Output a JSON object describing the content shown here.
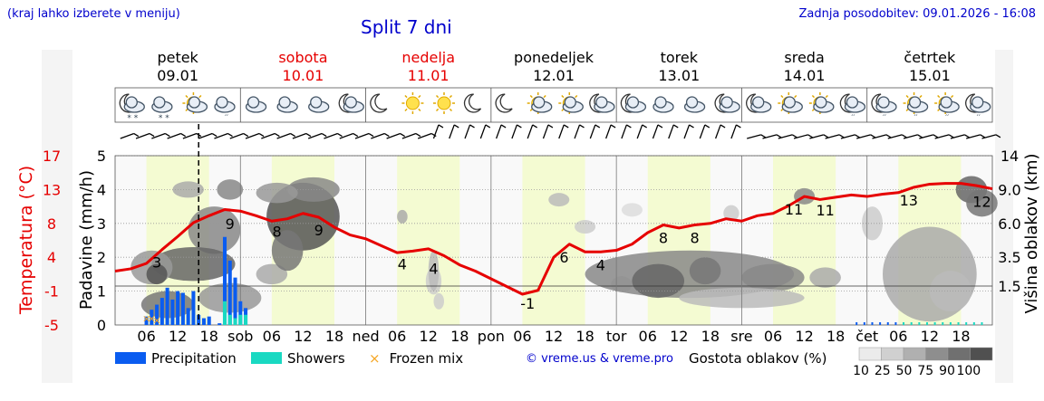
{
  "header": {
    "note": "(kraj lahko izberete v meniju)",
    "title": "Split 7 dni",
    "updated": "Zadnja posodobitev: 09.01.2026 - 16:08"
  },
  "colors": {
    "weekday": "#000000",
    "weekend": "#e60000",
    "temperature": "#e60000",
    "precipitation": "#0a5cf0",
    "showers": "#19d9c2",
    "frozen": "#f5a623",
    "day_band": "#f4fbd2",
    "night_band": "#f9f9f9",
    "link": "#0000cc"
  },
  "days": [
    {
      "name": "petek",
      "date": "09.01",
      "weekend": false
    },
    {
      "name": "sobota",
      "date": "10.01",
      "weekend": true
    },
    {
      "name": "nedelja",
      "date": "11.01",
      "weekend": true
    },
    {
      "name": "ponedeljek",
      "date": "12.01",
      "weekend": false
    },
    {
      "name": "torek",
      "date": "13.01",
      "weekend": false
    },
    {
      "name": "sreda",
      "date": "14.01",
      "weekend": false
    },
    {
      "name": "četrtek",
      "date": "15.01",
      "weekend": false
    }
  ],
  "weather_icons": [
    [
      "moon-cloud-snow-icon",
      "cloud-snow-icon",
      "sun-cloud-icon",
      "cloud-rain-icon"
    ],
    [
      "cloud-icon",
      "cloud-icon",
      "cloud-icon",
      "moon-cloud-icon"
    ],
    [
      "moon-icon",
      "sun-icon",
      "sun-icon",
      "moon-icon"
    ],
    [
      "moon-icon",
      "sun-cloud-icon",
      "sun-cloud-icon",
      "moon-cloud-icon"
    ],
    [
      "moon-cloud-icon",
      "cloud-icon",
      "cloud-icon",
      "moon-cloud-icon"
    ],
    [
      "moon-cloud-icon",
      "sun-cloud-icon",
      "sun-cloud-icon",
      "moon-cloud-rain-icon"
    ],
    [
      "moon-cloud-rain-icon",
      "sun-cloud-rain-icon",
      "sun-cloud-rain-icon",
      "moon-cloud-rain-icon"
    ]
  ],
  "axes": {
    "precip_label": "Padavine (mm/h)",
    "precip_ticks": [
      "0",
      "1",
      "2",
      "3",
      "4",
      "5"
    ],
    "temp_label": "Temperatura (°C)",
    "temp_ticks": [
      "-5",
      "-1",
      "4",
      "8",
      "13",
      "17"
    ],
    "cloud_label": "Višina oblakov (km)",
    "cloud_ticks": [
      "1.5",
      "3.5",
      "6.0",
      "9.0",
      "14"
    ],
    "time_labels": [
      "06",
      "12",
      "18",
      "sob",
      "06",
      "12",
      "18",
      "ned",
      "06",
      "12",
      "18",
      "pon",
      "06",
      "12",
      "18",
      "tor",
      "06",
      "12",
      "18",
      "sre",
      "06",
      "12",
      "18",
      "čet",
      "06",
      "12",
      "18"
    ]
  },
  "legend": {
    "precipitation": "Precipitation",
    "showers": "Showers",
    "frozen": "Frozen mix",
    "credit": "© vreme.us & vreme.pro",
    "cloud_title": "Gostota oblakov (%)",
    "cloud_scale": [
      "10",
      "25",
      "50",
      "75",
      "90",
      "100"
    ]
  },
  "chart_data": {
    "type": "line",
    "title": "Split 7 dni",
    "x_unit": "hours from 09.01 00:00",
    "xlim": [
      0,
      168
    ],
    "current_time_hour": 16,
    "temperature": {
      "ylabel": "Temperatura (°C)",
      "ylim": [
        -5,
        17
      ],
      "x": [
        0,
        3,
        6,
        9,
        12,
        15,
        18,
        21,
        24,
        27,
        30,
        33,
        36,
        39,
        42,
        45,
        48,
        51,
        54,
        57,
        60,
        63,
        66,
        69,
        72,
        75,
        78,
        81,
        84,
        87,
        90,
        93,
        96,
        99,
        102,
        105,
        108,
        111,
        114,
        117,
        120,
        123,
        126,
        129,
        132,
        135,
        138,
        141,
        144,
        147,
        150,
        153,
        156,
        159,
        162,
        165,
        168
      ],
      "values": [
        2,
        2.3,
        3,
        4.8,
        6.5,
        8.3,
        9.2,
        10,
        9.8,
        9.2,
        8.5,
        8.8,
        9.5,
        9,
        7.7,
        6.7,
        6.2,
        5.3,
        4.4,
        4.6,
        4.9,
        4,
        2.8,
        2,
        1,
        0,
        -1,
        -0.5,
        3.8,
        5.5,
        4.5,
        4.5,
        4.7,
        5.5,
        7,
        8,
        7.6,
        8,
        8.2,
        8.8,
        8.5,
        9.2,
        9.5,
        10.5,
        11.7,
        11.3,
        11.6,
        11.9,
        11.7,
        12,
        12.2,
        12.9,
        13.3,
        13.4,
        13.4,
        13.1,
        12.7
      ],
      "labels": [
        {
          "x": 8,
          "value": "3"
        },
        {
          "x": 22,
          "value": "9"
        },
        {
          "x": 31,
          "value": "8"
        },
        {
          "x": 39,
          "value": "9"
        },
        {
          "x": 55,
          "value": "4"
        },
        {
          "x": 61,
          "value": "4"
        },
        {
          "x": 79,
          "value": "-1"
        },
        {
          "x": 86,
          "value": "6"
        },
        {
          "x": 93,
          "value": "4"
        },
        {
          "x": 105,
          "value": "8"
        },
        {
          "x": 111,
          "value": "8"
        },
        {
          "x": 130,
          "value": "11"
        },
        {
          "x": 136,
          "value": "11"
        },
        {
          "x": 152,
          "value": "13"
        },
        {
          "x": 166,
          "value": "12"
        }
      ]
    },
    "precipitation": {
      "ylabel": "Padavine (mm/h)",
      "ylim": [
        0,
        5
      ],
      "x": [
        6,
        7,
        8,
        9,
        10,
        11,
        12,
        13,
        14,
        15,
        16,
        17,
        18,
        19,
        20,
        21,
        22,
        23,
        24,
        25
      ],
      "values": [
        0.25,
        0.45,
        0.6,
        0.8,
        1.1,
        0.75,
        1.0,
        0.95,
        0.5,
        1.0,
        0.3,
        0.2,
        0.25,
        0,
        0.05,
        2.6,
        1.9,
        1.4,
        0.7,
        0.5
      ]
    },
    "showers": {
      "x": [
        21,
        22,
        23,
        24,
        25
      ],
      "values": [
        0.7,
        0.3,
        0.2,
        0.3,
        0.3
      ]
    },
    "frozen_mix": {
      "x": [
        6,
        7,
        8
      ],
      "values": [
        0.2,
        0.2,
        0.15
      ]
    },
    "cloud_height_ticks_km": [
      1.5,
      3.5,
      6.0,
      9.0,
      14
    ],
    "cloud_density_scale_pct": [
      10,
      25,
      50,
      75,
      90,
      100
    ]
  }
}
